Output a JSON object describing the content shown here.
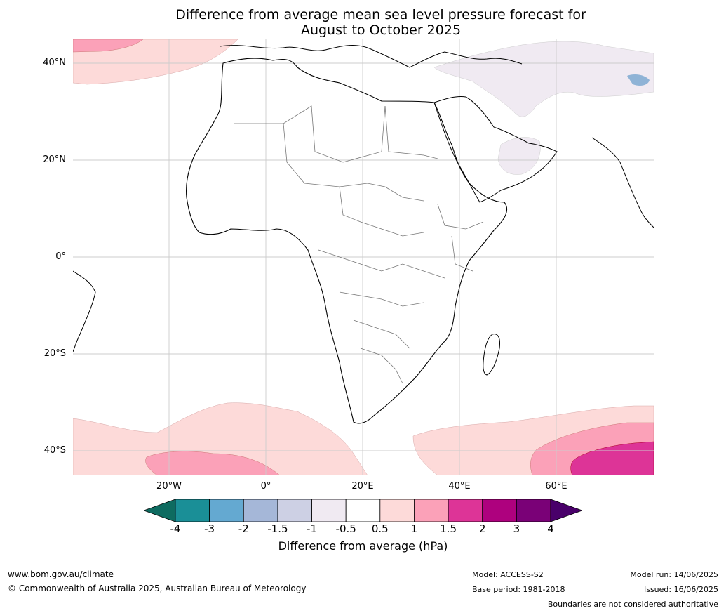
{
  "title_line1": "Difference from average mean sea level pressure forecast for",
  "title_line2": "August to October 2025",
  "lat_labels": [
    "40°N",
    "20°N",
    "0°",
    "20°S",
    "40°S"
  ],
  "lon_labels": [
    "20°W",
    "0°",
    "20°E",
    "40°E",
    "60°E"
  ],
  "colorbar": {
    "ticks": [
      "-4",
      "-3",
      "-2",
      "-1.5",
      "-1",
      "-0.5",
      "0.5",
      "1",
      "1.5",
      "2",
      "3",
      "4"
    ],
    "colors": [
      "#1a8f97",
      "#64a9d1",
      "#a5b7d8",
      "#cdd0e4",
      "#f0eaf2",
      "#ffffff",
      "#fddad9",
      "#fba1b8",
      "#dd3497",
      "#ae017e",
      "#7a0177"
    ],
    "low_extend_color": "#0e6b60",
    "high_extend_color": "#49006a",
    "label": "Difference from average (hPa)"
  },
  "footer": {
    "website": "www.bom.gov.au/climate",
    "copyright": "© Commonwealth of Australia 2025, Australian Bureau of Meteorology",
    "model": "Model: ACCESS-S2",
    "base_period": "Base period: 1981-2018",
    "model_run": "Model run: 14/06/2025",
    "issued": "Issued: 16/06/2025",
    "disclaimer": "Boundaries are not considered authoritative"
  }
}
